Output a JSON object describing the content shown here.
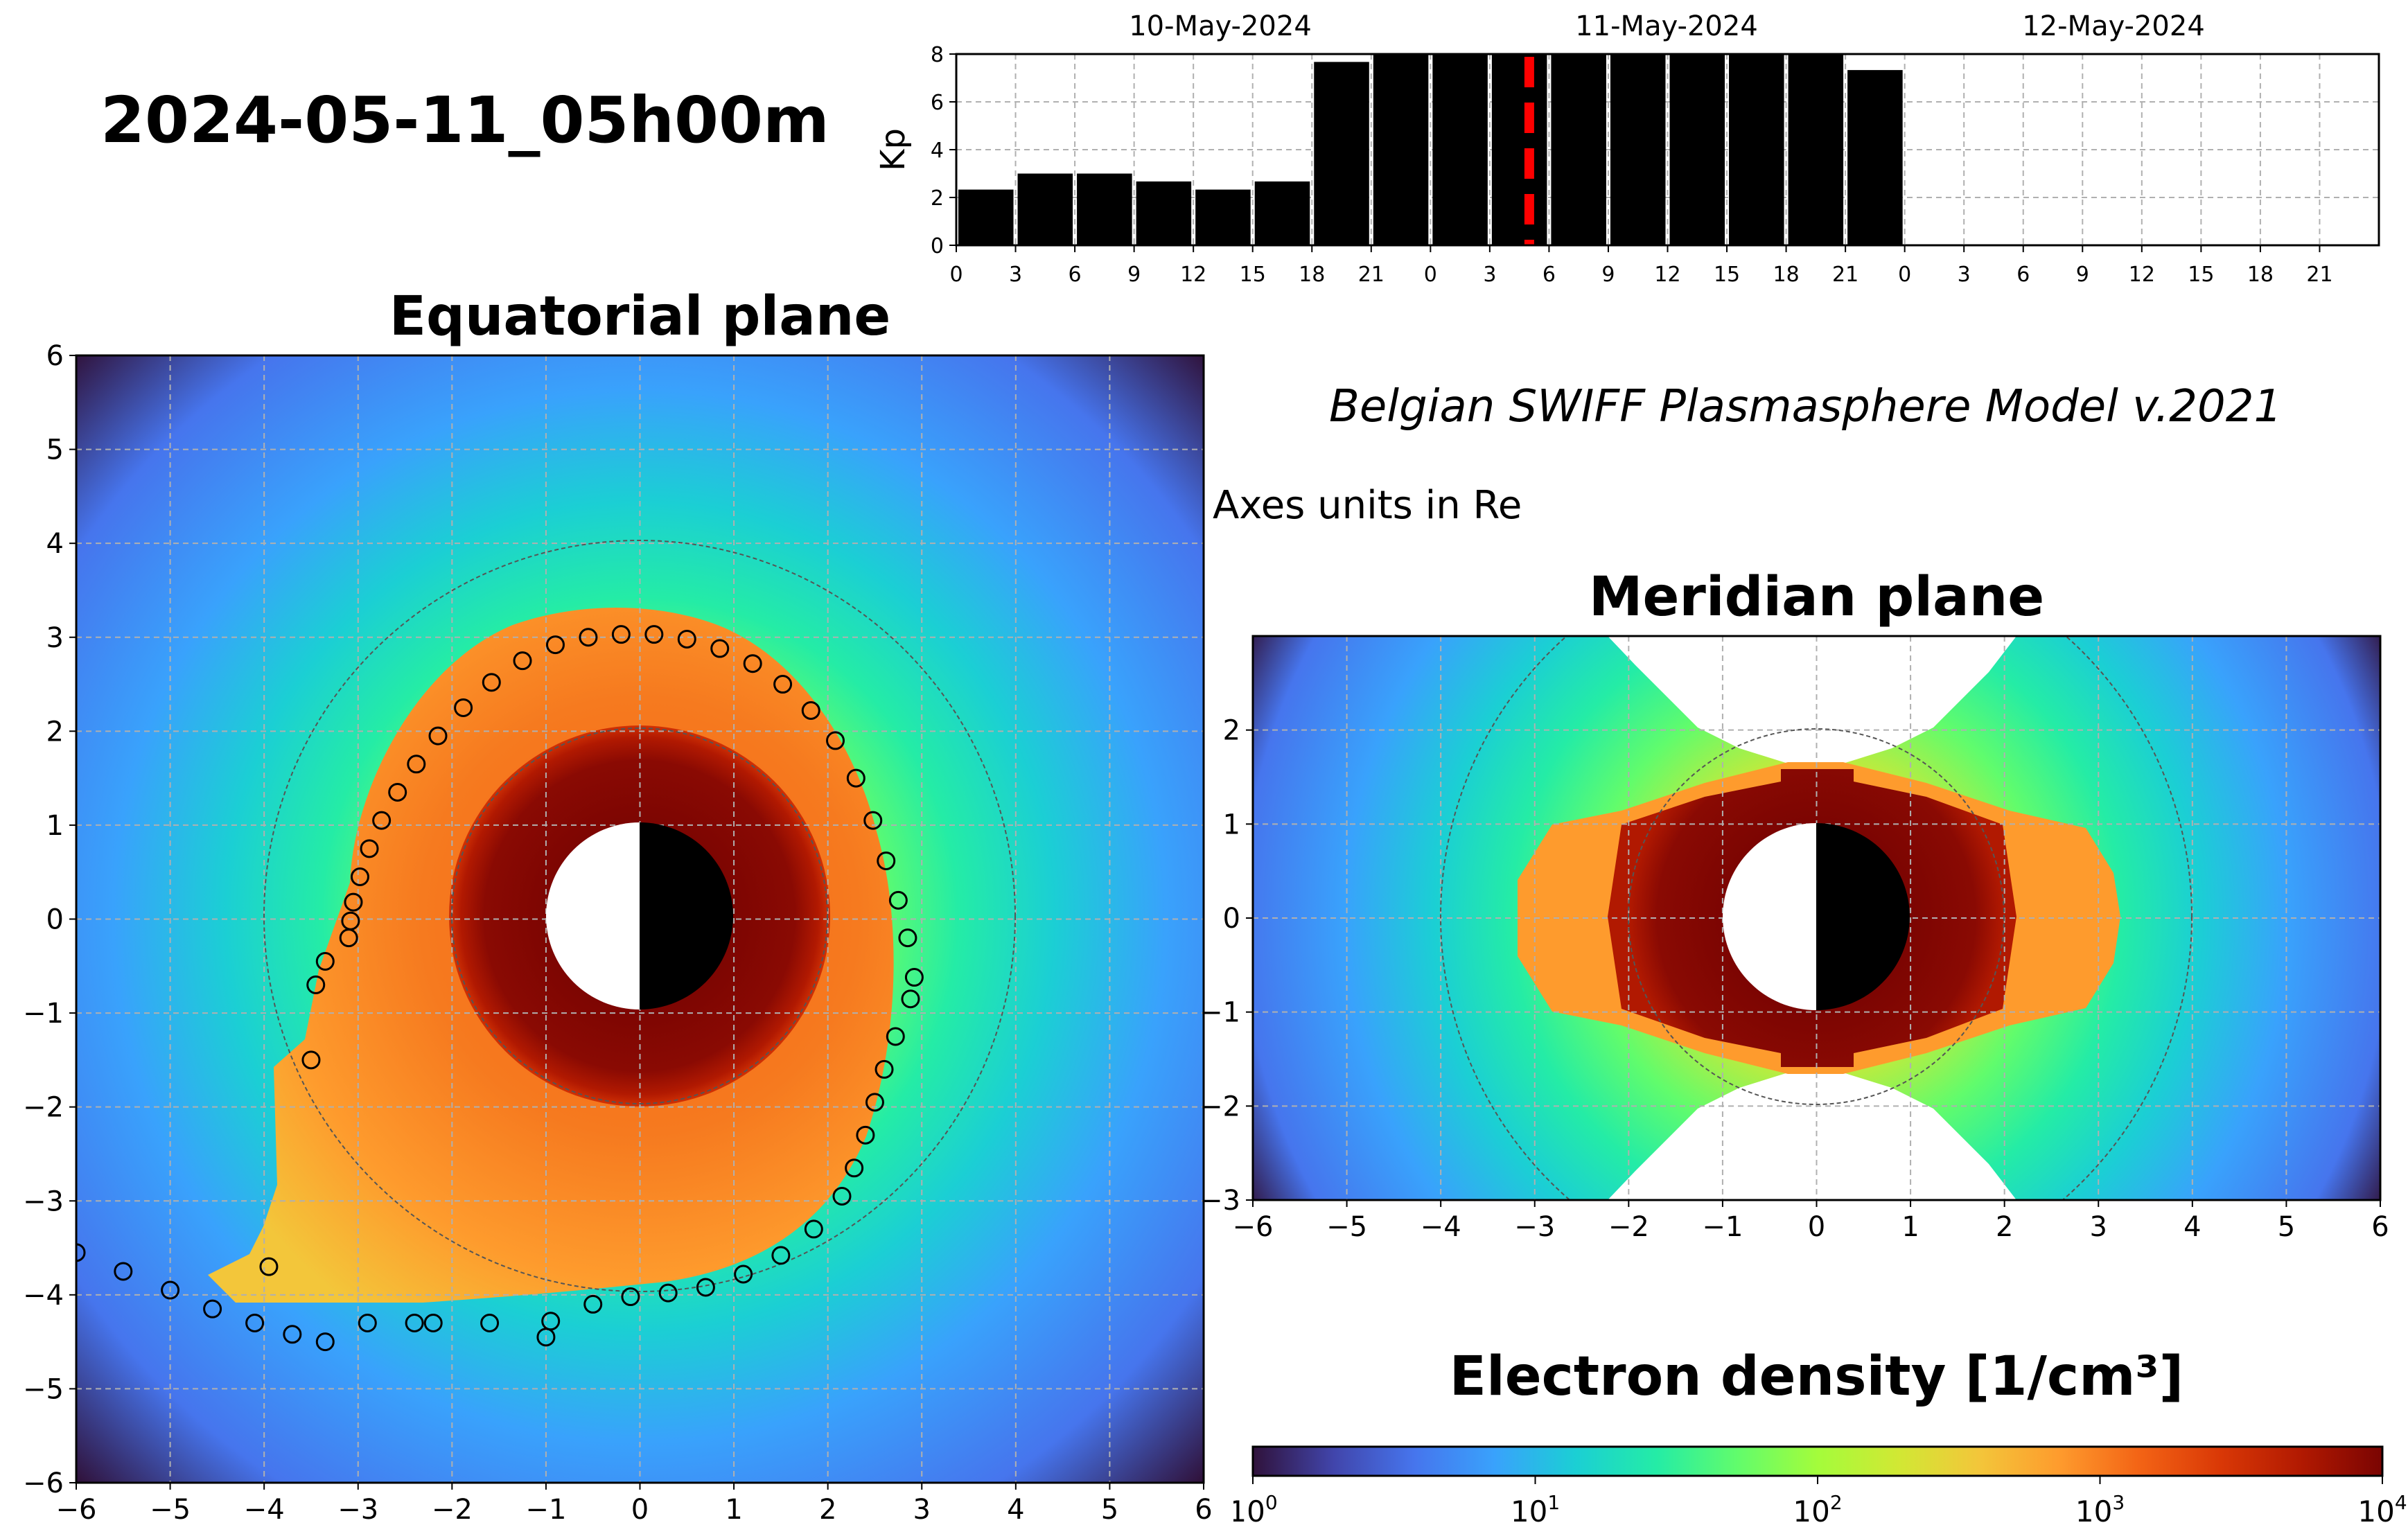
{
  "timestamp": "2024-05-11_05h00m",
  "model_name": "Belgian SWIFF Plasmasphere Model v.2021",
  "units_note": "Axes units in Re",
  "colors": {
    "kp_bar": "#000000",
    "current_time_line": "#ff0000",
    "grid": "#b0b0b0",
    "plasmapause_marker": "#000000"
  },
  "chart_data": [
    {
      "id": "kp",
      "type": "bar",
      "ylabel": "Kp",
      "ylim": [
        0,
        8
      ],
      "yticks": [
        "0",
        "2",
        "4",
        "6",
        "8"
      ],
      "date_labels": [
        "10-May-2024",
        "11-May-2024",
        "12-May-2024"
      ],
      "xtick_labels": [
        "0",
        "3",
        "6",
        "9",
        "12",
        "15",
        "18",
        "21",
        "0",
        "3",
        "6",
        "9",
        "12",
        "15",
        "18",
        "21",
        "0",
        "3",
        "6",
        "9",
        "12",
        "15",
        "18",
        "21"
      ],
      "values": [
        2.33,
        3.0,
        3.0,
        2.67,
        2.33,
        2.67,
        7.67,
        8.0,
        8.0,
        8.0,
        8.0,
        8.0,
        8.0,
        8.0,
        8.0,
        7.33
      ],
      "current_time_hours": 29,
      "grid": true
    },
    {
      "id": "equatorial",
      "type": "heatmap",
      "title": "Equatorial plane",
      "xlim": [
        -6,
        6
      ],
      "ylim": [
        -6,
        6
      ],
      "xtick_labels": [
        "−6",
        "−5",
        "−4",
        "−3",
        "−2",
        "−1",
        "0",
        "1",
        "2",
        "3",
        "4",
        "5",
        "6"
      ],
      "ytick_labels": [
        "6",
        "5",
        "4",
        "3",
        "2",
        "1",
        "0",
        "−1",
        "−2",
        "−3",
        "−4",
        "−5",
        "−6"
      ],
      "reference_circles_re": [
        2,
        4
      ],
      "plasmapause_points": [
        [
          -3.1,
          -0.2
        ],
        [
          -3.08,
          -0.02
        ],
        [
          -3.05,
          0.18
        ],
        [
          -2.98,
          0.45
        ],
        [
          -2.88,
          0.75
        ],
        [
          -2.75,
          1.05
        ],
        [
          -2.58,
          1.35
        ],
        [
          -2.38,
          1.65
        ],
        [
          -2.15,
          1.95
        ],
        [
          -1.88,
          2.25
        ],
        [
          -1.58,
          2.52
        ],
        [
          -1.25,
          2.75
        ],
        [
          -0.9,
          2.92
        ],
        [
          -0.55,
          3.0
        ],
        [
          -0.2,
          3.03
        ],
        [
          0.15,
          3.03
        ],
        [
          0.5,
          2.98
        ],
        [
          0.85,
          2.88
        ],
        [
          1.2,
          2.72
        ],
        [
          1.52,
          2.5
        ],
        [
          1.82,
          2.22
        ],
        [
          2.08,
          1.9
        ],
        [
          2.3,
          1.5
        ],
        [
          2.48,
          1.05
        ],
        [
          2.62,
          0.62
        ],
        [
          2.75,
          0.2
        ],
        [
          2.85,
          -0.2
        ],
        [
          2.92,
          -0.62
        ],
        [
          2.88,
          -0.85
        ],
        [
          2.72,
          -1.25
        ],
        [
          2.6,
          -1.6
        ],
        [
          2.5,
          -1.95
        ],
        [
          2.4,
          -2.3
        ],
        [
          2.28,
          -2.65
        ],
        [
          2.15,
          -2.95
        ],
        [
          1.85,
          -3.3
        ],
        [
          1.5,
          -3.58
        ],
        [
          1.1,
          -3.78
        ],
        [
          0.7,
          -3.92
        ],
        [
          0.3,
          -3.98
        ],
        [
          -0.1,
          -4.02
        ],
        [
          -0.5,
          -4.1
        ],
        [
          -0.95,
          -4.28
        ],
        [
          -1.6,
          -4.3
        ],
        [
          -2.2,
          -4.3
        ],
        [
          -2.9,
          -4.3
        ],
        [
          -3.35,
          -4.5
        ],
        [
          -3.7,
          -4.42
        ],
        [
          -4.1,
          -4.3
        ],
        [
          -4.55,
          -4.15
        ],
        [
          -5.0,
          -3.95
        ],
        [
          -5.5,
          -3.75
        ],
        [
          -6.0,
          -3.55
        ],
        [
          -3.45,
          -0.7
        ],
        [
          -3.35,
          -0.45
        ],
        [
          -3.5,
          -1.5
        ],
        [
          -3.95,
          -3.7
        ],
        [
          -1.0,
          -4.45
        ],
        [
          -2.4,
          -4.3
        ]
      ],
      "grid": true
    },
    {
      "id": "meridian",
      "type": "heatmap",
      "title": "Meridian plane",
      "xlim": [
        -6,
        6
      ],
      "ylim": [
        -3,
        3
      ],
      "xtick_labels": [
        "−6",
        "−5",
        "−4",
        "−3",
        "−2",
        "−1",
        "0",
        "1",
        "2",
        "3",
        "4",
        "5",
        "6"
      ],
      "ytick_labels": [
        "2",
        "1",
        "0",
        "−1",
        "−2",
        "−3"
      ],
      "reference_circles_re": [
        2,
        4
      ],
      "grid": true
    },
    {
      "id": "colorbar",
      "type": "colorbar",
      "title": "Electron density [1/cm³]",
      "scale": "log",
      "range": [
        1,
        10000
      ],
      "tick_labels": [
        {
          "base": "10",
          "exp": "0"
        },
        {
          "base": "10",
          "exp": "1"
        },
        {
          "base": "10",
          "exp": "2"
        },
        {
          "base": "10",
          "exp": "3"
        },
        {
          "base": "10",
          "exp": "4"
        }
      ],
      "colormap": [
        "#30123b",
        "#4145ab",
        "#4675ed",
        "#39a2fc",
        "#1bcfd4",
        "#24eca6",
        "#61fc6c",
        "#a4fc3b",
        "#d1e834",
        "#f3c63a",
        "#fe9b2d",
        "#f36315",
        "#d93806",
        "#b11901",
        "#7a0402"
      ]
    }
  ]
}
